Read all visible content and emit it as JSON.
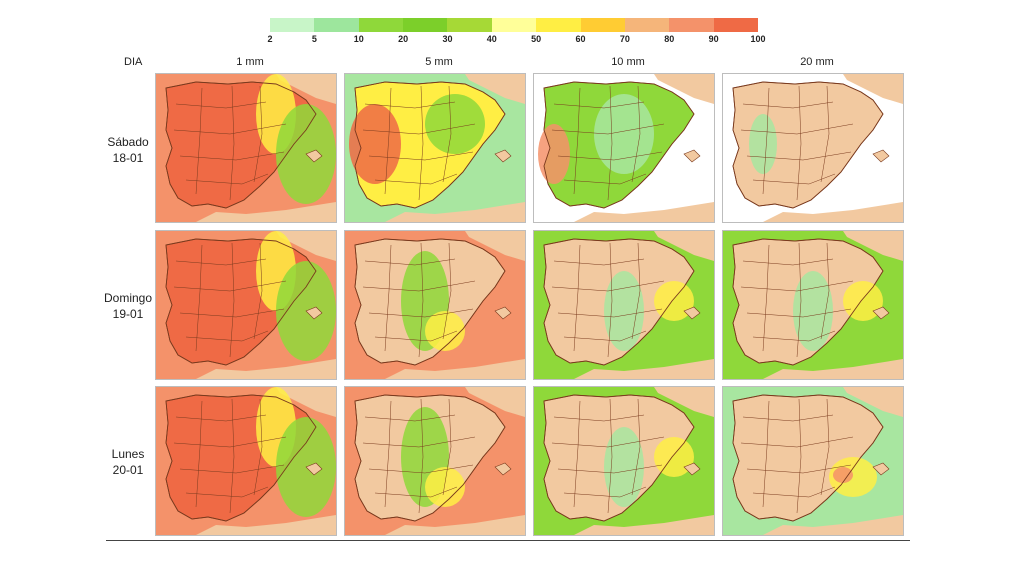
{
  "legend": {
    "ticks": [
      "2",
      "5",
      "10",
      "20",
      "30",
      "40",
      "50",
      "60",
      "70",
      "80",
      "90",
      "100"
    ],
    "colors": [
      "#c8f5c8",
      "#9de69d",
      "#8fd83a",
      "#7ccf2a",
      "#a6d936",
      "#ffff99",
      "#ffee44",
      "#ffcc33",
      "#f5b57a",
      "#f4926a",
      "#ef6a45"
    ]
  },
  "header": {
    "dia_label": "DIA",
    "columns": [
      "1 mm",
      "5 mm",
      "10 mm",
      "20 mm"
    ]
  },
  "rows": [
    {
      "day": "Sábado",
      "date": "18-01"
    },
    {
      "day": "Domingo",
      "date": "19-01"
    },
    {
      "day": "Lunes",
      "date": "20-01"
    }
  ],
  "maps": [
    [
      "very-high",
      "high",
      "medium",
      "low"
    ],
    [
      "very-high",
      "medium-east",
      "low-east",
      "low-east"
    ],
    [
      "very-high",
      "medium-east",
      "low-east",
      "low-southeast"
    ]
  ],
  "colors": {
    "land": "#f2c9a0",
    "sea_clear": "#ffffff",
    "border": "#7a3a1e",
    "green_light": "#a8e6a0",
    "green": "#8fd83a",
    "yellow": "#ffee44",
    "orange": "#f4926a",
    "red": "#ef6a45"
  }
}
